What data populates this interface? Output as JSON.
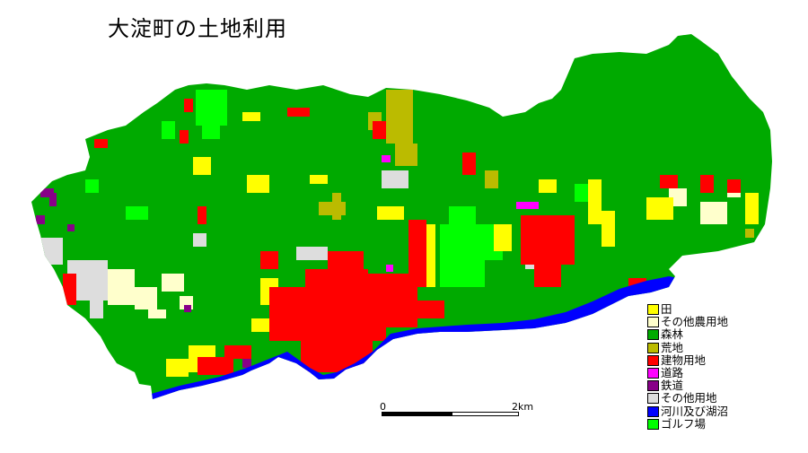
{
  "title": "大淀町の土地利用",
  "colors": {
    "paddy": "#ffff00",
    "other_farm": "#ffffcc",
    "forest": "#00aa00",
    "waste": "#bbbb00",
    "building": "#ff0000",
    "road": "#ff00ff",
    "railway": "#880088",
    "other": "#dddddd",
    "water": "#0000ff",
    "golf": "#00ff00"
  },
  "legend": [
    {
      "label": "田",
      "color": "#ffff00"
    },
    {
      "label": "その他農用地",
      "color": "#ffffcc"
    },
    {
      "label": "森林",
      "color": "#00aa00"
    },
    {
      "label": "荒地",
      "color": "#bbbb00"
    },
    {
      "label": "建物用地",
      "color": "#ff0000"
    },
    {
      "label": "道路",
      "color": "#ff00ff"
    },
    {
      "label": "鉄道",
      "color": "#880088"
    },
    {
      "label": "その他用地",
      "color": "#dddddd"
    },
    {
      "label": "河川及び湖沼",
      "color": "#0000ff"
    },
    {
      "label": "ゴルフ場",
      "color": "#00ff00"
    }
  ],
  "scale": {
    "start_label": "0",
    "end_label": "2km"
  }
}
